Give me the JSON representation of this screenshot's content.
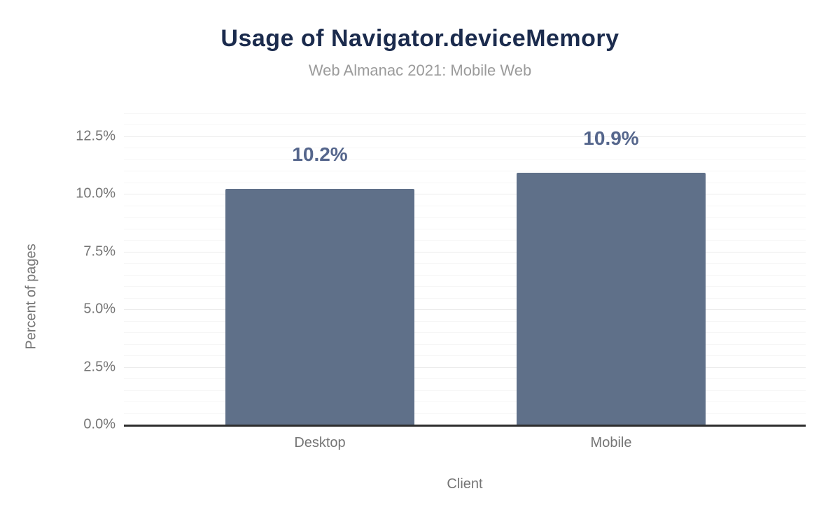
{
  "chart": {
    "title": "Usage of Navigator.deviceMemory",
    "subtitle": "Web Almanac 2021: Mobile Web",
    "xaxis_title": "Client",
    "yaxis_title": "Percent of pages"
  },
  "chart_data": {
    "type": "bar",
    "title": "Usage of Navigator.deviceMemory",
    "subtitle": "Web Almanac 2021: Mobile Web",
    "categories": [
      "Desktop",
      "Mobile"
    ],
    "values": [
      10.2,
      10.9
    ],
    "value_labels": [
      "10.2%",
      "10.9%"
    ],
    "xlabel": "Client",
    "ylabel": "Percent of pages",
    "ylim": [
      0,
      13.5
    ],
    "ytick_values": [
      0,
      2.5,
      5,
      7.5,
      10,
      12.5
    ],
    "ytick_labels": [
      "0.0%",
      "2.5%",
      "5.0%",
      "7.5%",
      "10.0%",
      "12.5%"
    ],
    "minor_grid_step": 0.5,
    "grid": true,
    "legend": false,
    "colors": {
      "bar": "#5f7089",
      "value_label": "#55668c",
      "title": "#1b2b4d",
      "subtitle": "#9b9b9b",
      "axis_text": "#757575",
      "baseline": "#2e2e2e",
      "major_grid": "#ececec",
      "minor_grid": "#f6f6f6",
      "background": "#ffffff"
    }
  }
}
